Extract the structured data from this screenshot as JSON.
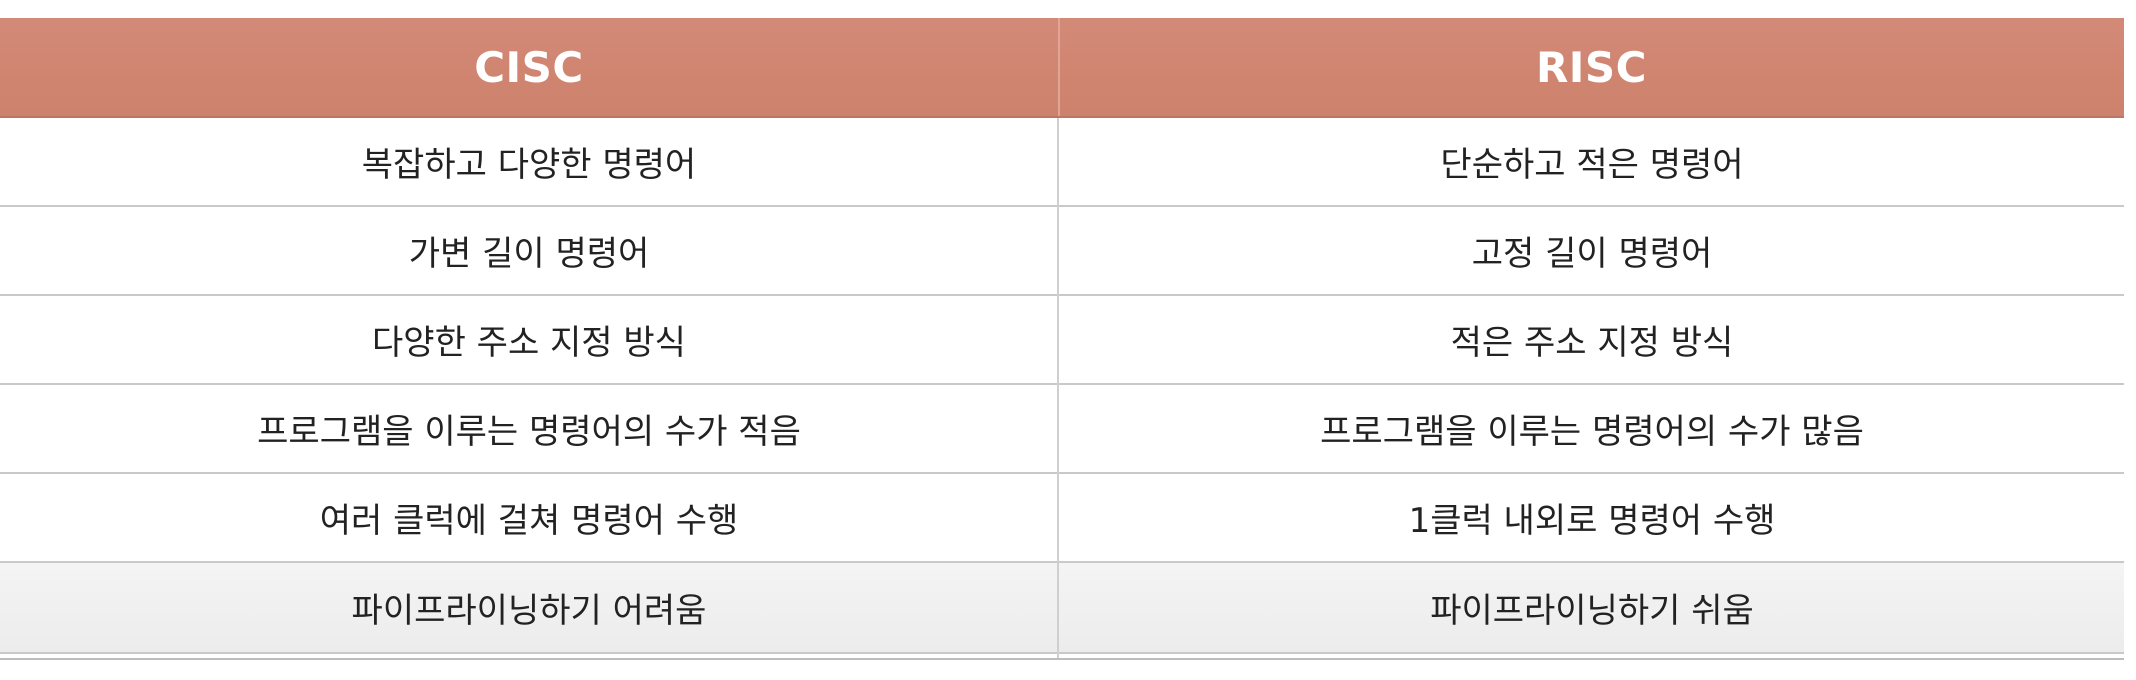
{
  "table": {
    "headers": [
      "CISC",
      "RISC"
    ],
    "rows": [
      [
        "복잡하고 다양한 명령어",
        "단순하고 적은 명령어"
      ],
      [
        "가변 길이 명령어",
        "고정 길이 명령어"
      ],
      [
        "다양한 주소 지정 방식",
        "적은 주소 지정 방식"
      ],
      [
        "프로그램을 이루는 명령어의 수가 적음",
        "프로그램을 이루는 명령어의 수가 많음"
      ],
      [
        "여러 클럭에 걸쳐 명령어 수행",
        "1클럭 내외로 명령어 수행"
      ],
      [
        "파이프라이닝하기 어려움",
        "파이프라이닝하기 쉬움"
      ]
    ]
  },
  "colors": {
    "header_background": "#d08570",
    "header_text": "#ffffff",
    "body_text": "#222222",
    "grid_line": "#c9c9c9"
  }
}
